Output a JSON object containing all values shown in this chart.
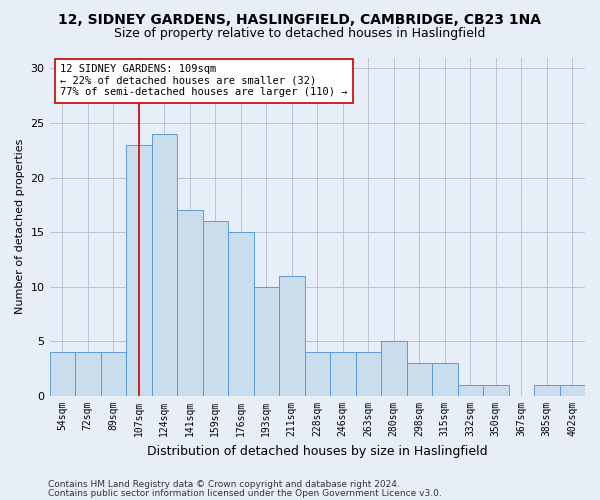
{
  "title_line1": "12, SIDNEY GARDENS, HASLINGFIELD, CAMBRIDGE, CB23 1NA",
  "title_line2": "Size of property relative to detached houses in Haslingfield",
  "xlabel": "Distribution of detached houses by size in Haslingfield",
  "ylabel": "Number of detached properties",
  "bar_labels": [
    "54sqm",
    "72sqm",
    "89sqm",
    "107sqm",
    "124sqm",
    "141sqm",
    "159sqm",
    "176sqm",
    "193sqm",
    "211sqm",
    "228sqm",
    "246sqm",
    "263sqm",
    "280sqm",
    "298sqm",
    "315sqm",
    "332sqm",
    "350sqm",
    "367sqm",
    "385sqm",
    "402sqm"
  ],
  "bar_values": [
    4,
    4,
    4,
    23,
    24,
    17,
    16,
    15,
    10,
    11,
    4,
    4,
    4,
    5,
    3,
    3,
    1,
    1,
    0,
    1,
    1
  ],
  "bar_color": "#c9dded",
  "bar_edgecolor": "#5b9bd5",
  "vline_x": 3,
  "vline_color": "#cc0000",
  "annotation_box_text": "12 SIDNEY GARDENS: 109sqm\n← 22% of detached houses are smaller (32)\n77% of semi-detached houses are larger (110) →",
  "ylim": [
    0,
    31
  ],
  "yticks": [
    0,
    5,
    10,
    15,
    20,
    25,
    30
  ],
  "footer_line1": "Contains HM Land Registry data © Crown copyright and database right 2024.",
  "footer_line2": "Contains public sector information licensed under the Open Government Licence v3.0.",
  "background_color": "#e8eef7",
  "plot_background_color": "#e8eef7",
  "grid_color": "#b8c4d4",
  "title_fontsize": 10,
  "subtitle_fontsize": 9,
  "axis_label_fontsize": 8,
  "tick_fontsize": 7,
  "annotation_fontsize": 7.5,
  "footer_fontsize": 6.5
}
